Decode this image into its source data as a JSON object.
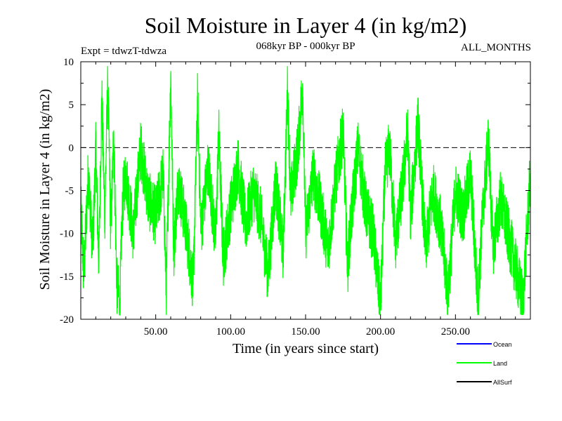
{
  "chart_data": {
    "type": "line",
    "title": "Soil Moisture in Layer 4 (in kg/m2)",
    "subtitle_left": "Expt = tdwzT-tdwza",
    "subtitle_center": "068kyr BP - 000kyr BP",
    "subtitle_right": "ALL_MONTHS",
    "xlabel": "Time (in years since start)",
    "ylabel": "Soil Moisture in Layer 4 (in kg/m2)",
    "xlim": [
      0,
      300
    ],
    "ylim": [
      -20,
      10
    ],
    "x_ticks": [
      50,
      100,
      150,
      200,
      250
    ],
    "x_tick_labels": [
      "50.00",
      "100.00",
      "150.00",
      "200.00",
      "250.00"
    ],
    "y_ticks": [
      -20,
      -15,
      -10,
      -5,
      0,
      5,
      10
    ],
    "y_tick_labels": [
      "-20",
      "-15",
      "-10",
      "-5",
      "0",
      "5",
      "10"
    ],
    "reference_line": 0,
    "series": [
      {
        "name": "Land",
        "color": "#00ff00",
        "keypoints": [
          [
            0,
            -7
          ],
          [
            2,
            -15
          ],
          [
            5,
            -3
          ],
          [
            8,
            -12
          ],
          [
            10,
            0
          ],
          [
            12,
            -14
          ],
          [
            14,
            6
          ],
          [
            16,
            -8
          ],
          [
            18,
            8
          ],
          [
            20,
            -10
          ],
          [
            22,
            2
          ],
          [
            24,
            -16
          ],
          [
            26,
            -18
          ],
          [
            28,
            -6
          ],
          [
            30,
            -3
          ],
          [
            35,
            -10
          ],
          [
            40,
            0
          ],
          [
            45,
            -6
          ],
          [
            50,
            -8
          ],
          [
            55,
            -3
          ],
          [
            57,
            -17
          ],
          [
            60,
            8.5
          ],
          [
            62,
            -12
          ],
          [
            65,
            -4
          ],
          [
            70,
            -9
          ],
          [
            75,
            -16
          ],
          [
            78,
            6
          ],
          [
            80,
            -10
          ],
          [
            85,
            -2
          ],
          [
            90,
            -11
          ],
          [
            92,
            2
          ],
          [
            95,
            -13
          ],
          [
            100,
            -7
          ],
          [
            105,
            -2
          ],
          [
            110,
            -9
          ],
          [
            115,
            -5
          ],
          [
            120,
            -8
          ],
          [
            125,
            -15
          ],
          [
            130,
            -4
          ],
          [
            135,
            -12
          ],
          [
            138,
            7
          ],
          [
            140,
            -6
          ],
          [
            145,
            0
          ],
          [
            148,
            7.5
          ],
          [
            150,
            -10
          ],
          [
            155,
            -3
          ],
          [
            160,
            -7
          ],
          [
            165,
            -12
          ],
          [
            170,
            -4
          ],
          [
            175,
            2
          ],
          [
            178,
            -14
          ],
          [
            180,
            -9
          ],
          [
            185,
            0
          ],
          [
            190,
            -7
          ],
          [
            195,
            -10
          ],
          [
            200,
            -18.5
          ],
          [
            203,
            -3
          ],
          [
            206,
            0
          ],
          [
            210,
            -11
          ],
          [
            215,
            -4
          ],
          [
            218,
            2
          ],
          [
            220,
            -8
          ],
          [
            225,
            3
          ],
          [
            230,
            -12
          ],
          [
            235,
            -5
          ],
          [
            240,
            -9
          ],
          [
            245,
            -17
          ],
          [
            250,
            -5
          ],
          [
            255,
            -8
          ],
          [
            260,
            -3
          ],
          [
            265,
            -18
          ],
          [
            268,
            -8
          ],
          [
            272,
            1
          ],
          [
            275,
            -12
          ],
          [
            280,
            -6
          ],
          [
            285,
            -10
          ],
          [
            290,
            -14
          ],
          [
            295,
            -18
          ],
          [
            300,
            -3
          ]
        ]
      }
    ],
    "legend": [
      {
        "name": "Ocean",
        "color": "#0000ff"
      },
      {
        "name": "Land",
        "color": "#00ff00"
      },
      {
        "name": "AllSurf",
        "color": "#000000"
      }
    ]
  }
}
